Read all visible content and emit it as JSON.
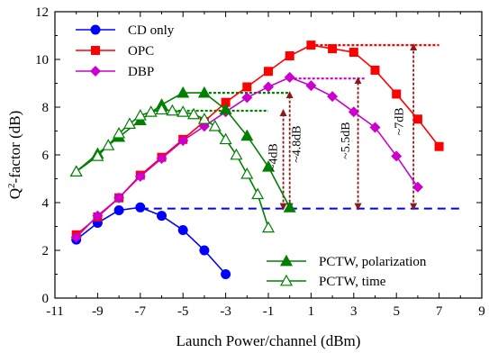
{
  "chart_data": {
    "type": "line",
    "xlabel": "Launch Power/channel (dBm)",
    "ylabel": "Q2-factor (dB)",
    "ylabel_main": "Q",
    "ylabel_sup": "2",
    "ylabel_rest": "-factor (dB)",
    "xlim": [
      -11,
      9
    ],
    "ylim": [
      0,
      12
    ],
    "xticks": [
      -11,
      -9,
      -7,
      -5,
      -3,
      -1,
      1,
      3,
      5,
      7,
      9
    ],
    "yticks": [
      0,
      2,
      4,
      6,
      8,
      10,
      12
    ],
    "grid": false,
    "legend": [
      {
        "placement": "top-left",
        "entries": [
          "CD only",
          "OPC",
          "DBP"
        ]
      },
      {
        "placement": "bottom-right",
        "entries": [
          "PCTW, polarization",
          "PCTW, time"
        ]
      }
    ],
    "series": [
      {
        "name": "CD only",
        "color": "#0000ff",
        "marker": "circle",
        "x": [
          -10,
          -9,
          -8,
          -7,
          -6,
          -5,
          -4,
          -3
        ],
        "y": [
          2.45,
          3.15,
          3.68,
          3.8,
          3.45,
          2.85,
          2.0,
          1.0
        ]
      },
      {
        "name": "OPC",
        "color": "#ff0000",
        "marker": "square",
        "x": [
          -10,
          -9,
          -8,
          -7,
          -6,
          -5,
          -4,
          -3,
          -2,
          -1,
          0,
          1,
          2,
          3,
          4,
          5,
          6,
          7
        ],
        "y": [
          2.65,
          3.4,
          4.2,
          5.15,
          5.9,
          6.65,
          7.4,
          8.2,
          8.85,
          9.5,
          10.15,
          10.6,
          10.45,
          10.3,
          9.55,
          8.55,
          7.5,
          6.35
        ]
      },
      {
        "name": "DBP",
        "color": "#cc00cc",
        "marker": "diamond",
        "x": [
          -10,
          -9,
          -8,
          -7,
          -6,
          -5,
          -4,
          -3,
          -2,
          -1,
          0,
          1,
          2,
          3,
          4,
          5,
          6
        ],
        "y": [
          2.55,
          3.45,
          4.2,
          5.1,
          5.85,
          6.6,
          7.2,
          7.8,
          8.4,
          8.85,
          9.25,
          8.9,
          8.45,
          7.8,
          7.15,
          5.95,
          4.65
        ]
      },
      {
        "name": "PCTW, polarization",
        "color": "#008000",
        "marker": "triangle-filled",
        "x": [
          -10,
          -9,
          -8,
          -7,
          -6,
          -5,
          -4,
          -3,
          -2,
          -1,
          0
        ],
        "y": [
          5.3,
          6.05,
          6.75,
          7.45,
          8.1,
          8.6,
          8.6,
          7.9,
          6.8,
          5.5,
          3.8
        ]
      },
      {
        "name": "PCTW, time",
        "color": "#008000",
        "marker": "triangle-open",
        "x": [
          -10,
          -9,
          -8.5,
          -8,
          -7.5,
          -7,
          -6.5,
          -6,
          -5.5,
          -5,
          -4.5,
          -4,
          -3.5,
          -3,
          -2.5,
          -2,
          -1.5,
          -1
        ],
        "y": [
          5.3,
          5.95,
          6.4,
          6.9,
          7.3,
          7.65,
          7.8,
          7.9,
          7.85,
          7.8,
          7.7,
          7.5,
          7.2,
          6.65,
          6.0,
          5.2,
          4.35,
          2.95
        ]
      }
    ],
    "reference_lines": [
      {
        "color": "#0000ff",
        "x_start": -7,
        "x_end": 8,
        "y": 3.75,
        "style": "dashed"
      },
      {
        "color": "#ff0000",
        "x_start": 1,
        "x_end": 7,
        "y": 10.6,
        "style": "dotted"
      },
      {
        "color": "#cc00cc",
        "x_start": 0,
        "x_end": 3.5,
        "y": 9.2,
        "style": "dotted"
      },
      {
        "color": "#008000",
        "x_start": -4,
        "x_end": 0,
        "y": 8.6,
        "style": "dotted"
      },
      {
        "color": "#008000",
        "x_start": -6.5,
        "x_end": -1,
        "y": 7.85,
        "style": "dotted"
      }
    ],
    "annotations": [
      {
        "text": "~4dB",
        "x": -0.6,
        "y": 5.9,
        "arrow_x": -0.3,
        "y_from": 3.75,
        "y_to": 7.85
      },
      {
        "text": "~4.8dB",
        "x": 0.5,
        "y": 6.45,
        "arrow_x": 0.0,
        "y_from": 3.75,
        "y_to": 8.6
      },
      {
        "text": "~5.5dB",
        "x": 2.8,
        "y": 6.6,
        "arrow_x": 3.2,
        "y_from": 3.75,
        "y_to": 9.2
      },
      {
        "text": "~7dB",
        "x": 5.3,
        "y": 7.4,
        "arrow_x": 5.8,
        "y_from": 3.75,
        "y_to": 10.6
      }
    ]
  }
}
